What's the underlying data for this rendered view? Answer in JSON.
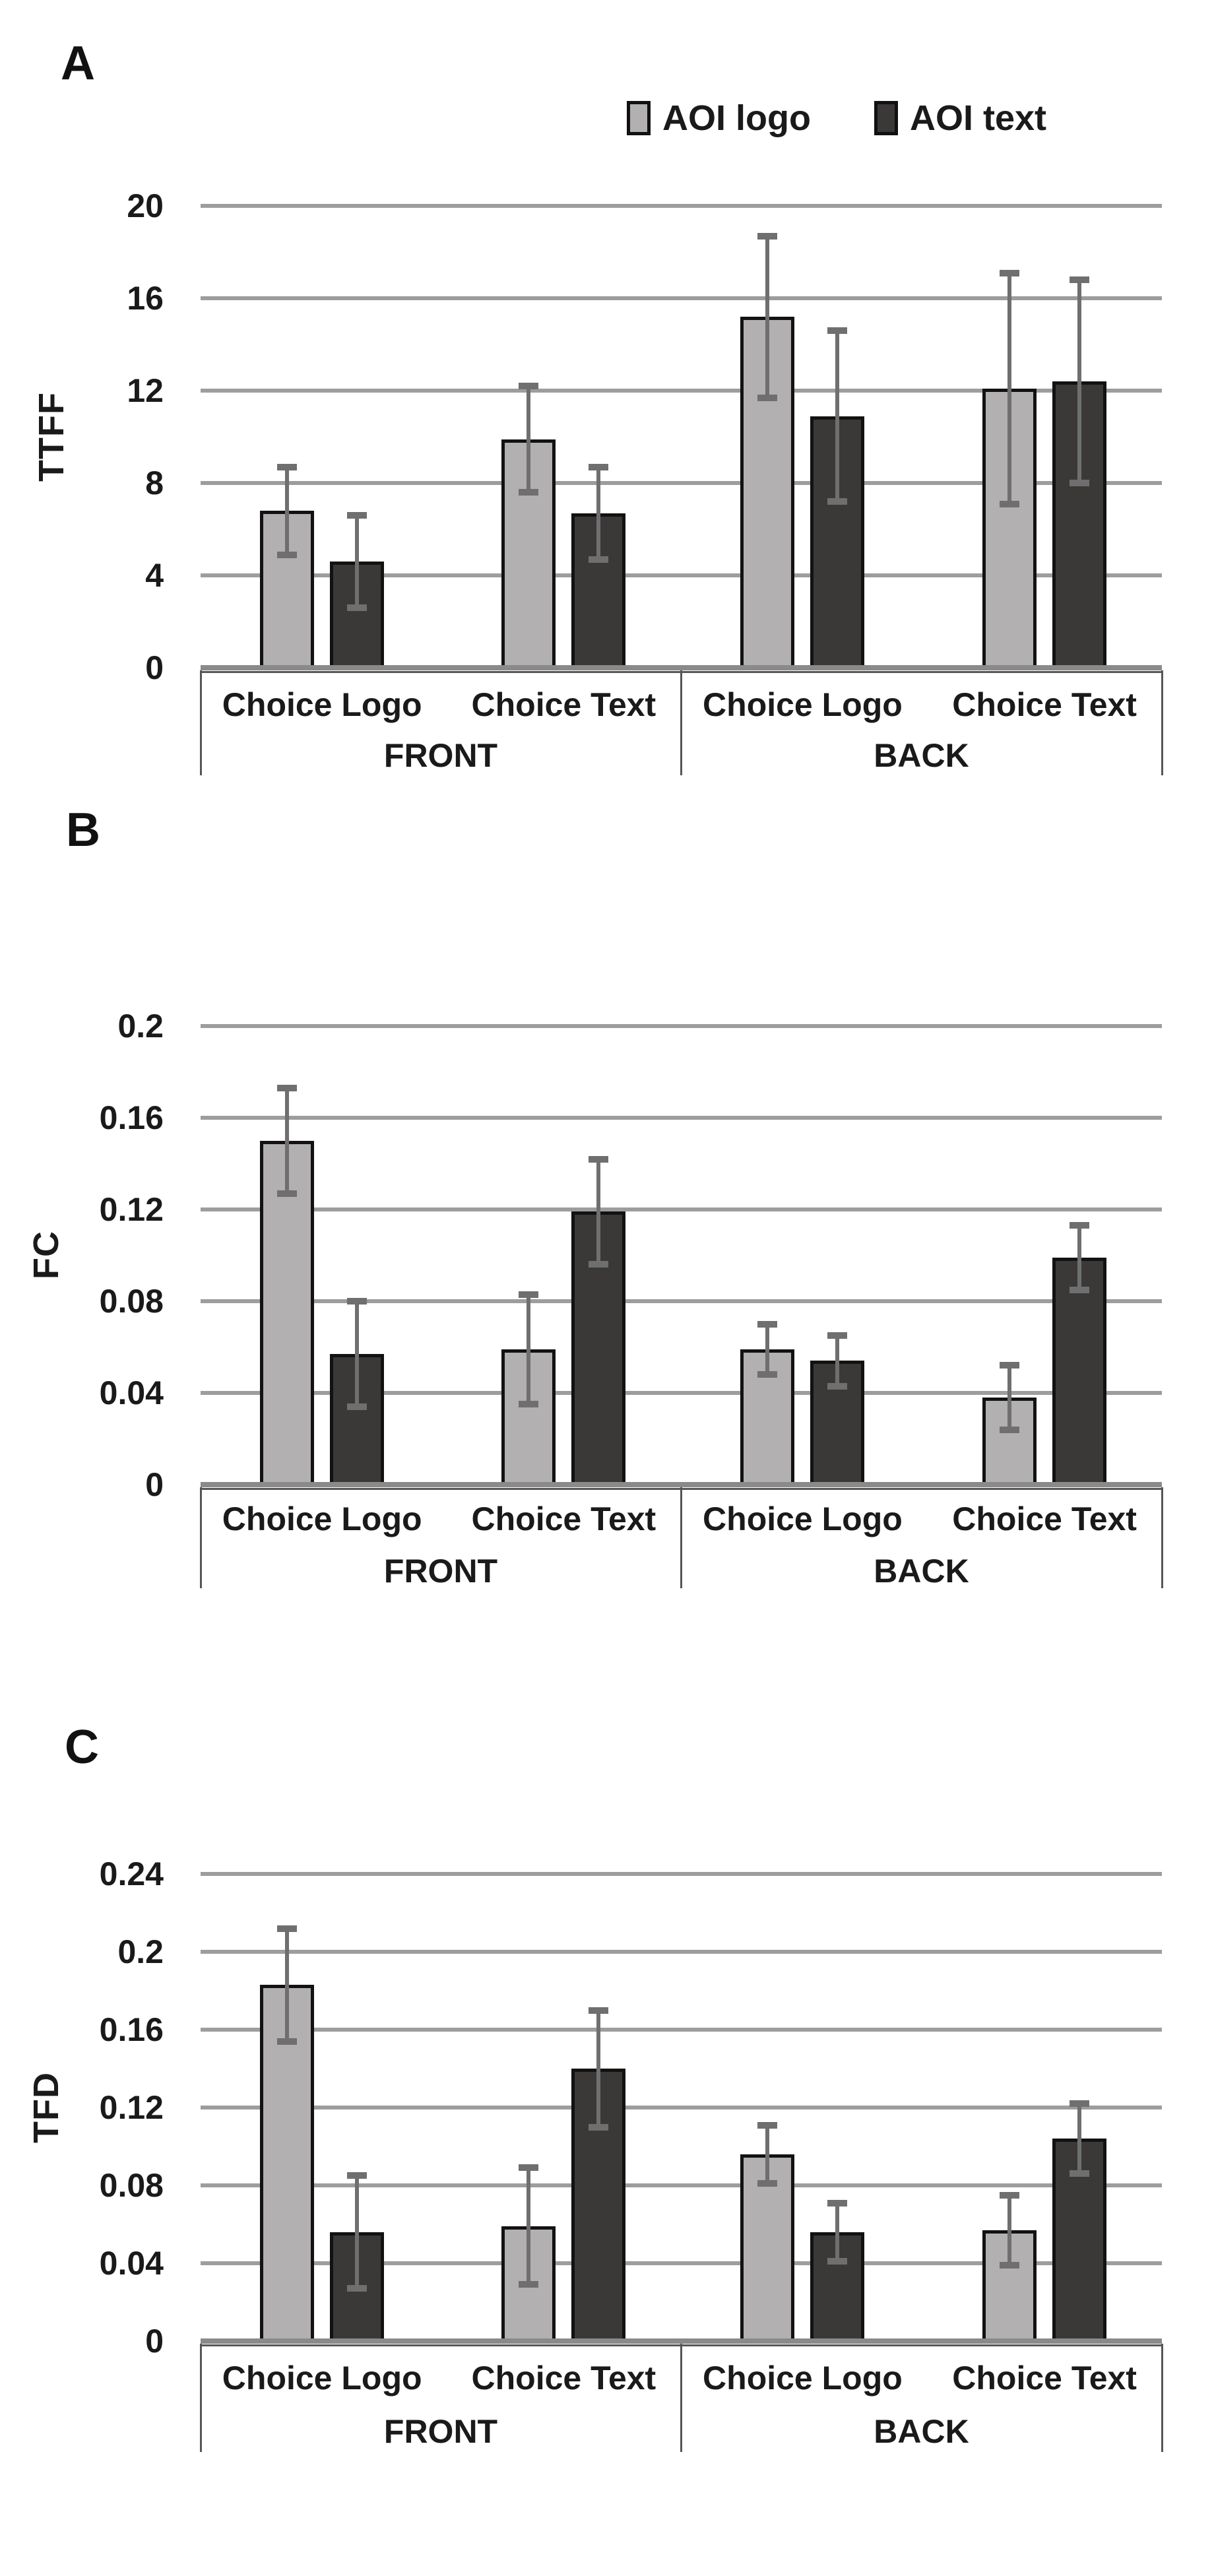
{
  "figure_title": "",
  "legend": {
    "items": [
      {
        "label": "AOI logo",
        "color": "#b2b0b0"
      },
      {
        "label": "AOI text",
        "color": "#3b3838"
      }
    ]
  },
  "colors": {
    "bar_light": "#b2b0b0",
    "bar_dark": "#3b3838",
    "bar_border": "#121212",
    "gridline": "#9d9d9d",
    "baseline": "#8a8a8a",
    "error_bar": "#6f6f6f",
    "category_line": "#565656",
    "text": "#1a1a1a"
  },
  "chart_data": [
    {
      "panel": "A",
      "type": "bar",
      "title": "",
      "xlabel": "",
      "ylabel": "TTFF",
      "ylim": [
        0,
        20
      ],
      "yticks": [
        20,
        16,
        12,
        8,
        4,
        0
      ],
      "ytick_labels": [
        "20",
        "16",
        "12",
        "8",
        "4",
        "0"
      ],
      "grid": true,
      "legend_position": "top-right",
      "sections": [
        "FRONT",
        "BACK"
      ],
      "categories": [
        "Choice Logo",
        "Choice Text",
        "Choice Logo",
        "Choice Text"
      ],
      "series": [
        {
          "name": "AOI logo",
          "color": "#b2b0b0",
          "values": [
            6.8,
            9.9,
            15.2,
            12.1
          ],
          "errors": [
            1.9,
            2.3,
            3.5,
            5.0
          ]
        },
        {
          "name": "AOI text",
          "color": "#3b3838",
          "values": [
            4.6,
            6.7,
            10.9,
            12.4
          ],
          "errors": [
            2.0,
            2.0,
            3.7,
            4.4
          ]
        }
      ]
    },
    {
      "panel": "B",
      "type": "bar",
      "title": "",
      "xlabel": "",
      "ylabel": "FC",
      "ylim": [
        0,
        0.2
      ],
      "yticks": [
        0.2,
        0.16,
        0.12,
        0.08,
        0.04,
        0
      ],
      "ytick_labels": [
        "0.2",
        "0.16",
        "0.12",
        "0.08",
        "0.04",
        "0"
      ],
      "grid": true,
      "legend_position": "none",
      "sections": [
        "FRONT",
        "BACK"
      ],
      "categories": [
        "Choice Logo",
        "Choice Text",
        "Choice Logo",
        "Choice Text"
      ],
      "series": [
        {
          "name": "AOI logo",
          "color": "#b2b0b0",
          "values": [
            0.15,
            0.059,
            0.059,
            0.038
          ],
          "errors": [
            0.023,
            0.024,
            0.011,
            0.014
          ]
        },
        {
          "name": "AOI text",
          "color": "#3b3838",
          "values": [
            0.057,
            0.119,
            0.054,
            0.099
          ],
          "errors": [
            0.023,
            0.023,
            0.011,
            0.014
          ]
        }
      ]
    },
    {
      "panel": "C",
      "type": "bar",
      "title": "",
      "xlabel": "",
      "ylabel": "TFD",
      "ylim": [
        0,
        0.24
      ],
      "yticks": [
        0.24,
        0.2,
        0.16,
        0.12,
        0.08,
        0.04,
        0
      ],
      "ytick_labels": [
        "0.24",
        "0.2",
        "0.16",
        "0.12",
        "0.08",
        "0.04",
        "0"
      ],
      "grid": true,
      "legend_position": "none",
      "sections": [
        "FRONT",
        "BACK"
      ],
      "categories": [
        "Choice Logo",
        "Choice Text",
        "Choice Logo",
        "Choice Text"
      ],
      "series": [
        {
          "name": "AOI logo",
          "color": "#b2b0b0",
          "values": [
            0.183,
            0.059,
            0.096,
            0.057
          ],
          "errors": [
            0.029,
            0.03,
            0.015,
            0.018
          ]
        },
        {
          "name": "AOI text",
          "color": "#3b3838",
          "values": [
            0.056,
            0.14,
            0.056,
            0.104
          ],
          "errors": [
            0.029,
            0.03,
            0.015,
            0.018
          ]
        }
      ]
    }
  ]
}
